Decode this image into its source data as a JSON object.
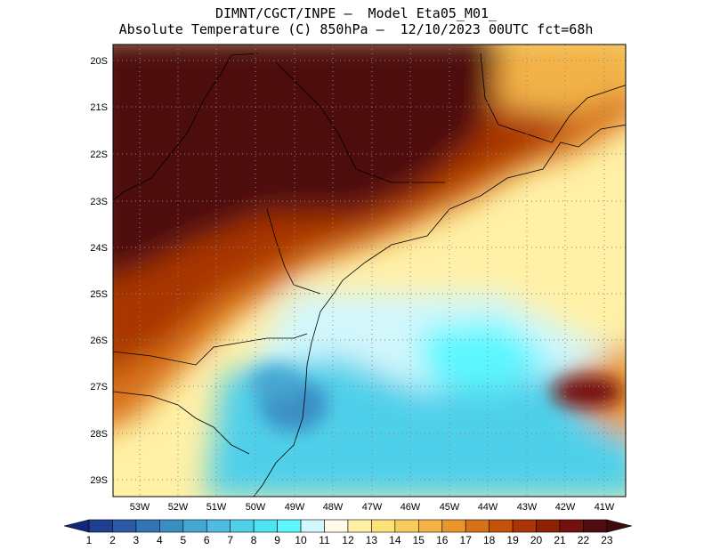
{
  "header": {
    "line1": "DIMNT/CGCT/INPE –  Model Eta05_M01_",
    "line2": "Absolute Temperature (C) 850hPa –  12/10/2023 00UTC fct=68h"
  },
  "map": {
    "lat_labels": [
      "20S",
      "21S",
      "22S",
      "23S",
      "24S",
      "25S",
      "26S",
      "27S",
      "28S",
      "29S"
    ],
    "lon_labels": [
      "53W",
      "52W",
      "51W",
      "50W",
      "49W",
      "48W",
      "47W",
      "46W",
      "45W",
      "44W",
      "43W",
      "42W",
      "41W"
    ]
  },
  "colorbar": {
    "labels": [
      "1",
      "2",
      "3",
      "4",
      "5",
      "6",
      "7",
      "8",
      "9",
      "10",
      "11",
      "12",
      "13",
      "14",
      "15",
      "16",
      "17",
      "18",
      "19",
      "20",
      "21",
      "22",
      "23"
    ],
    "colors": [
      "#1f3f91",
      "#2a5aa6",
      "#3374b4",
      "#3b8ec4",
      "#44a6d2",
      "#4fbbe0",
      "#4fd0ea",
      "#4ee3f2",
      "#5cf7ff",
      "#d2f7fc",
      "#fffaea",
      "#fff0a6",
      "#fde27a",
      "#f8cc5c",
      "#f2b246",
      "#e8962c",
      "#d87015",
      "#c45208",
      "#a93604",
      "#8e2104",
      "#75110c",
      "#4e0d10"
    ],
    "low_arrow": "#13277a",
    "high_arrow": "#3d0a0d"
  }
}
